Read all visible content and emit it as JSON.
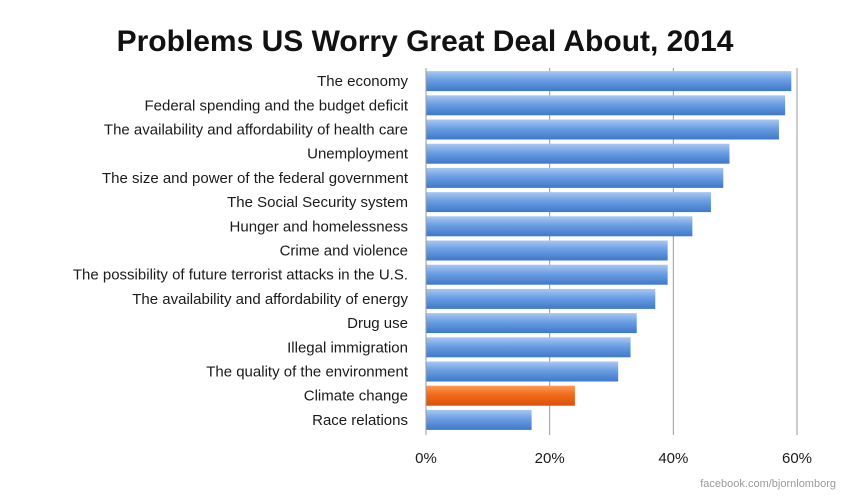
{
  "chart_data": {
    "type": "bar",
    "orientation": "horizontal",
    "title": "Problems US Worry Great Deal About, 2014",
    "categories": [
      "The economy",
      "Federal spending and the budget deficit",
      "The availability and affordability of health care",
      "Unemployment",
      "The size and power of the federal government",
      "The Social Security system",
      "Hunger and homelessness",
      "Crime and violence",
      "The possibility of future terrorist attacks in the U.S.",
      "The availability and affordability of energy",
      "Drug use",
      "Illegal immigration",
      "The quality of the environment",
      "Climate change",
      "Race relations"
    ],
    "values": [
      59,
      58,
      57,
      49,
      48,
      46,
      43,
      39,
      39,
      37,
      34,
      33,
      31,
      24,
      17
    ],
    "highlight_category": "Climate change",
    "xlim": [
      0,
      60
    ],
    "x_ticks": [
      "0%",
      "20%",
      "40%",
      "60%"
    ],
    "x_tick_values": [
      0,
      20,
      40,
      60
    ],
    "grid": "vertical",
    "legend": "none",
    "colors": {
      "bar": "#6a9ee3",
      "bar_top": "#a9c8f2",
      "bar_bottom": "#3f78c8",
      "highlight": "#f26a1b",
      "highlight_top": "#ff9a55",
      "highlight_bottom": "#d8520a"
    }
  },
  "footer": {
    "source": "facebook.com/bjornlomborg"
  }
}
